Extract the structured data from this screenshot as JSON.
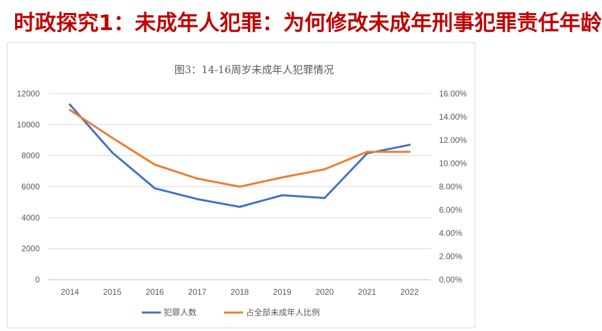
{
  "slide": {
    "title": "时政探究1：未成年人犯罪：为何修改未成年刑事犯罪责任年龄",
    "title_color": "#c00000"
  },
  "chart_data": {
    "type": "line",
    "title": "图3：14-16周岁未成年人犯罪情况",
    "x": [
      "2014",
      "2015",
      "2016",
      "2017",
      "2018",
      "2019",
      "2020",
      "2021",
      "2022"
    ],
    "series": [
      {
        "name": "犯罪人数",
        "axis": "left",
        "color": "#4472c4",
        "values": [
          11300,
          8200,
          5900,
          5200,
          4700,
          5450,
          5270,
          8150,
          8700
        ]
      },
      {
        "name": "占全部未成年人比例",
        "axis": "right",
        "color": "#ed7d31",
        "values": [
          0.146,
          0.122,
          0.099,
          0.087,
          0.08,
          0.088,
          0.095,
          0.11,
          0.11
        ]
      }
    ],
    "y_left": {
      "lim": [
        0,
        12000
      ],
      "ticks": [
        "0",
        "2000",
        "4000",
        "6000",
        "8000",
        "10000",
        "12000"
      ]
    },
    "y_right": {
      "lim": [
        0,
        0.16
      ],
      "ticks": [
        "0.00%",
        "2.00%",
        "4.00%",
        "6.00%",
        "8.00%",
        "10.00%",
        "12.00%",
        "14.00%",
        "16.00%"
      ]
    },
    "grid": true,
    "legend": "bottom"
  }
}
